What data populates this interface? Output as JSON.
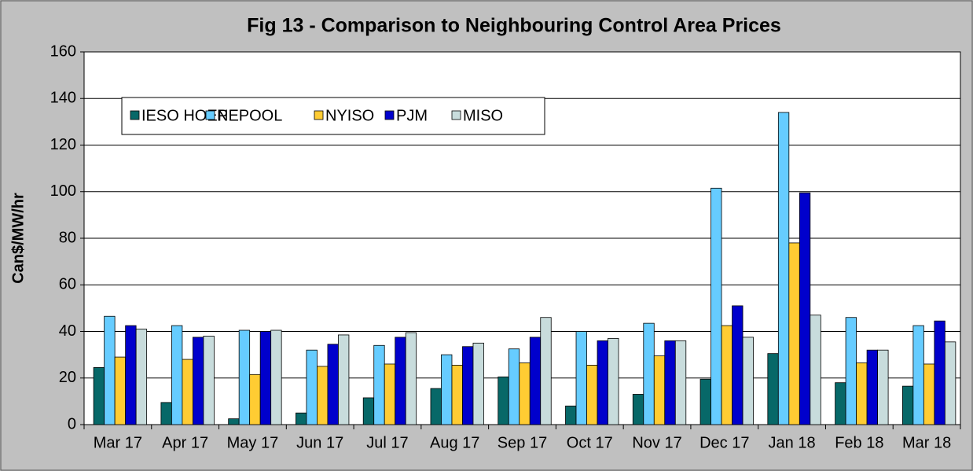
{
  "chart_data": {
    "type": "bar",
    "title": "Fig  13 - Comparison to Neighbouring Control Area Prices",
    "y_label": "Can$/MW/hr",
    "categories": [
      "Mar 17",
      "Apr 17",
      "May 17",
      "Jun 17",
      "Jul 17",
      "Aug 17",
      "Sep 17",
      "Oct 17",
      "Nov 17",
      "Dec 17",
      "Jan 18",
      "Feb 18",
      "Mar 18"
    ],
    "series": [
      {
        "name": "IESO HOEP",
        "color": "#076868",
        "values": [
          24.5,
          9.5,
          2.5,
          5,
          11.5,
          15.5,
          20.5,
          8,
          13,
          19.5,
          30.5,
          18,
          16.5
        ]
      },
      {
        "name": "NEPOOL",
        "color": "#66ccff",
        "values": [
          46.5,
          42.5,
          40.5,
          32,
          34,
          30,
          32.5,
          40,
          43.5,
          101.5,
          134,
          46,
          42.5
        ]
      },
      {
        "name": "NYISO",
        "color": "#ffcc33",
        "values": [
          29,
          28,
          21.5,
          25,
          26,
          25.5,
          26.5,
          25.5,
          29.5,
          42.5,
          78,
          26.5,
          26
        ]
      },
      {
        "name": "PJM",
        "color": "#0000cc",
        "values": [
          42.5,
          37.5,
          40,
          34.5,
          37.5,
          33.5,
          37.5,
          36,
          36,
          51,
          99.5,
          32,
          44.5
        ]
      },
      {
        "name": "MISO",
        "color": "#c8dcdc",
        "values": [
          41,
          38,
          40.5,
          38.5,
          39.5,
          35,
          46,
          37,
          36,
          37.5,
          47,
          32,
          35.5
        ]
      }
    ],
    "ylim": [
      0,
      160
    ],
    "yticks": [
      0,
      20,
      40,
      60,
      80,
      100,
      120,
      140,
      160
    ],
    "grid": true
  }
}
